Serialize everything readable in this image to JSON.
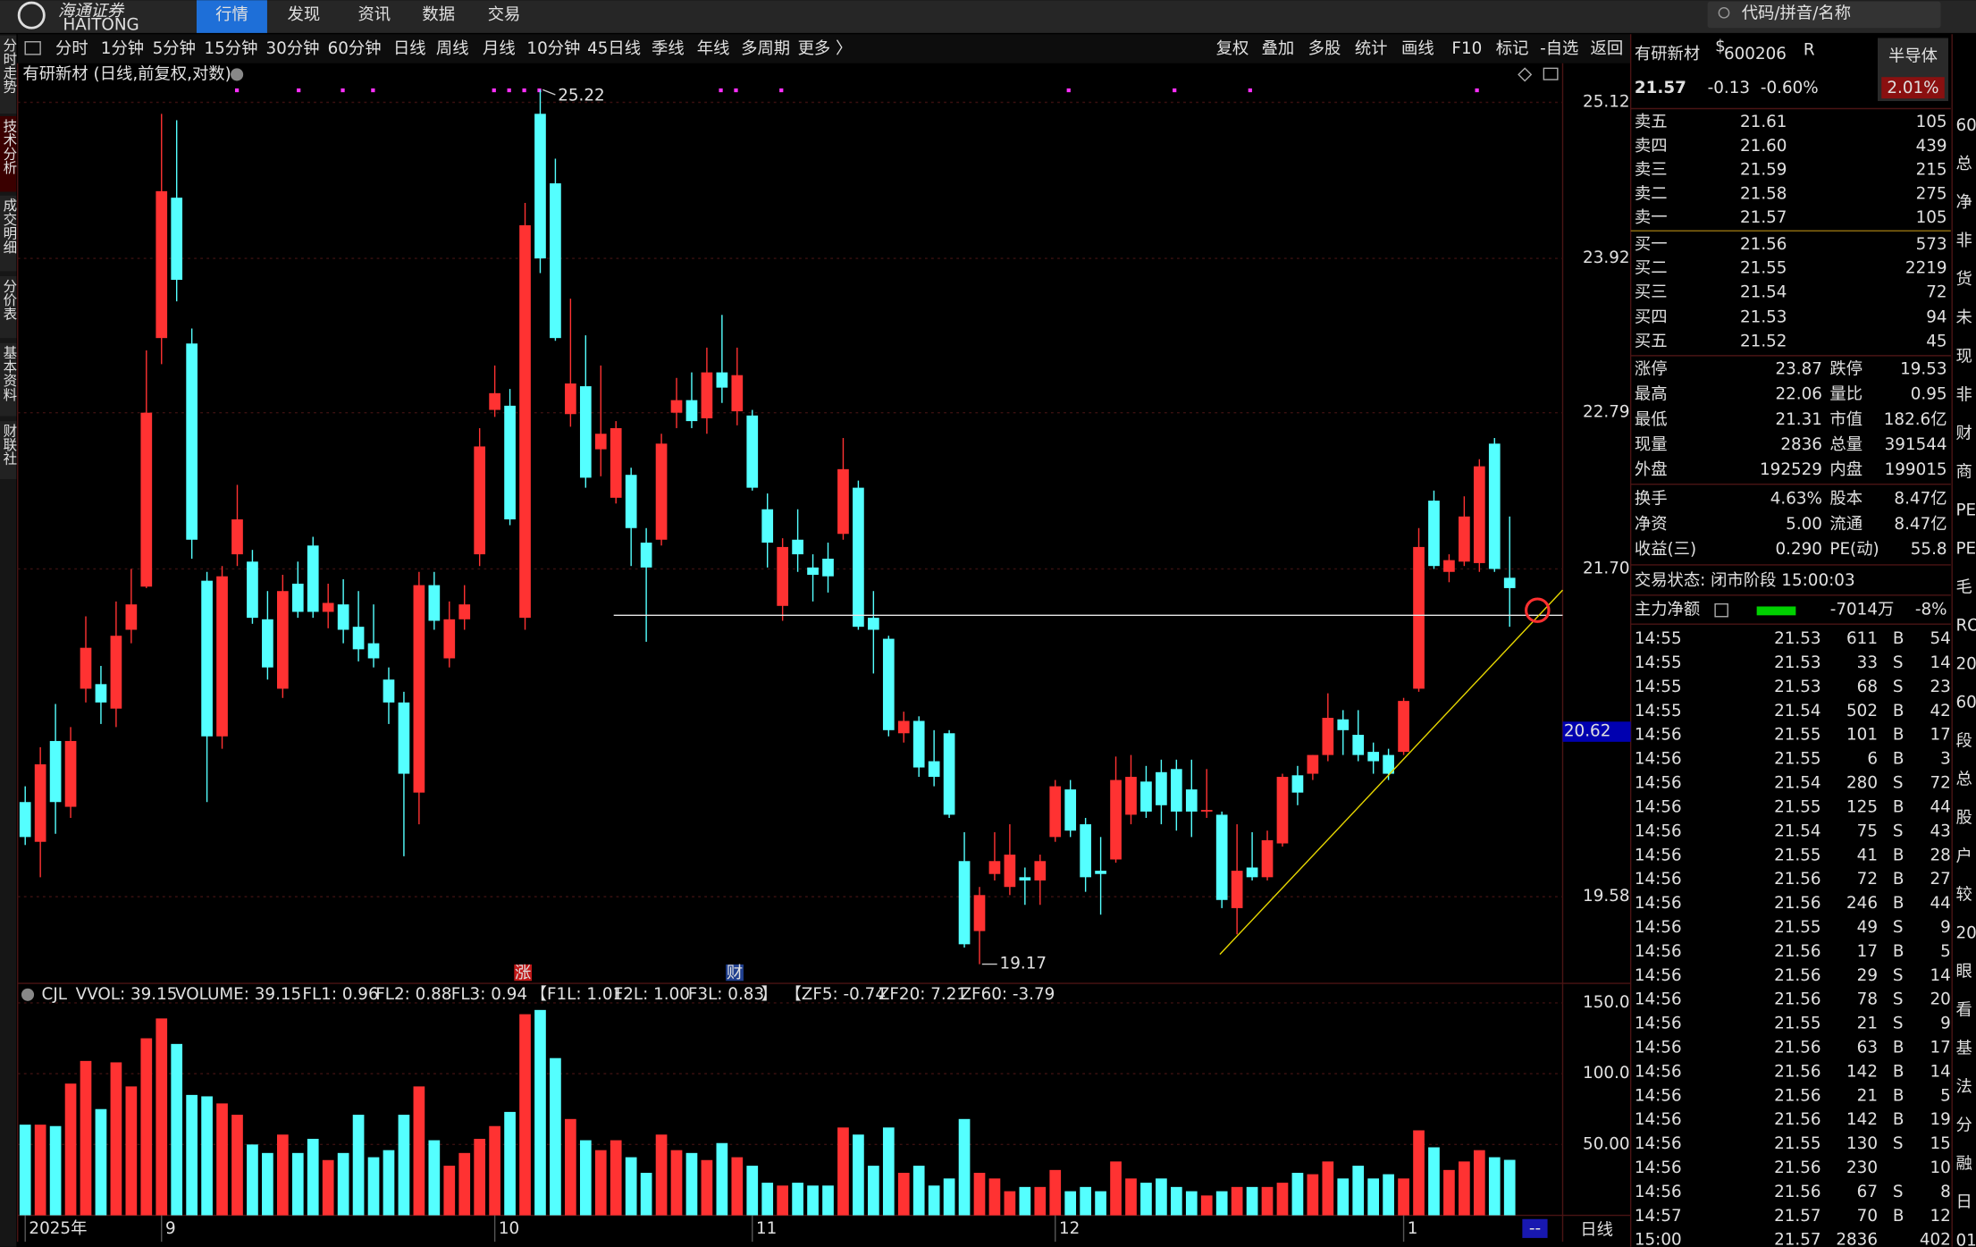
{
  "nav": {
    "logo": "海通证券",
    "logo_en": "HAITONG",
    "tabs": [
      "行情",
      "发现",
      "资讯",
      "数据",
      "交易"
    ],
    "selected_tab": 0,
    "search_placeholder": "代码/拼音/名称"
  },
  "side_tabs": {
    "items": [
      "分时走势",
      "技术分析",
      "成交明细",
      "分价表",
      "基本资料",
      "财联社"
    ],
    "selected": 1
  },
  "toolbar": {
    "periods": [
      "分时",
      "1分钟",
      "5分钟",
      "15分钟",
      "30分钟",
      "60分钟",
      "日线",
      "周线",
      "月线",
      "10分钟",
      "45日线",
      "季线",
      "年线",
      "多周期",
      "更多 〉"
    ],
    "selected_period": 6,
    "tools": [
      "复权",
      "叠加",
      "多股",
      "统计",
      "画线",
      "F10",
      "标记",
      "-自选",
      "返回"
    ]
  },
  "chart": {
    "type": "candlestick",
    "title": "有研新材 (日线,前复权,对数)",
    "log_scale": true,
    "up_color": "#ff3232",
    "down_color": "#54ffff",
    "ylim": [
      19.07,
      25.27
    ],
    "yticks": [
      25.12,
      23.92,
      22.79,
      {
        "value": 21.7,
        "label": "21.70"
      },
      19.58
    ],
    "cursor_price": 20.62,
    "high_label": 25.22,
    "low_label": 19.17,
    "event_markers": [
      "涨",
      "财"
    ],
    "categories": [
      "2025年",
      null,
      null,
      null,
      null,
      null,
      null,
      null,
      null,
      "9",
      null,
      null,
      null,
      null,
      null,
      null,
      null,
      null,
      null,
      null,
      null,
      null,
      null,
      null,
      null,
      null,
      null,
      null,
      null,
      null,
      null,
      "10",
      null,
      null,
      null,
      null,
      null,
      null,
      null,
      null,
      null,
      null,
      null,
      null,
      null,
      null,
      null,
      null,
      "11",
      null,
      null,
      null,
      null,
      null,
      null,
      null,
      null,
      null,
      null,
      null,
      null,
      null,
      null,
      null,
      null,
      null,
      null,
      null,
      "12",
      null,
      null,
      null,
      null,
      null,
      null,
      null,
      null,
      null,
      null,
      null,
      null,
      null,
      null,
      null,
      null,
      null,
      null,
      null,
      null,
      null,
      null,
      "1",
      null,
      null,
      null,
      null,
      null,
      null,
      null
    ],
    "open": [
      20.17,
      19.92,
      20.56,
      20.14,
      20.9,
      20.93,
      20.77,
      21.29,
      21.58,
      23.33,
      24.38,
      23.29,
      21.62,
      20.59,
      21.8,
      21.75,
      21.36,
      20.9,
      21.6,
      21.86,
      21.41,
      21.46,
      21.31,
      21.2,
      20.96,
      20.81,
      20.23,
      21.59,
      21.1,
      21.36,
      21.8,
      22.81,
      22.84,
      21.37,
      25.03,
      24.49,
      22.78,
      22.98,
      22.53,
      22.19,
      22.35,
      21.88,
      21.9,
      22.79,
      22.88,
      22.75,
      23.08,
      22.8,
      22.77,
      22.11,
      21.45,
      21.9,
      21.71,
      21.77,
      21.94,
      22.26,
      21.37,
      21.23,
      20.61,
      20.69,
      20.43,
      20.61,
      19.8,
      19.37,
      19.72,
      19.64,
      19.7,
      19.68,
      19.95,
      20.25,
      20.03,
      19.74,
      19.81,
      20.09,
      20.3,
      20.36,
      20.38,
      20.25,
      20.11,
      20.09,
      19.51,
      19.76,
      19.7,
      19.91,
      20.34,
      20.35,
      20.47,
      20.7,
      20.6,
      20.49,
      20.47,
      20.49,
      20.9,
      22.17,
      21.68,
      21.75,
      21.74,
      22.57,
      21.64
    ],
    "high": [
      20.27,
      20.52,
      20.8,
      20.65,
      21.38,
      21.05,
      21.48,
      21.7,
      23.24,
      25.03,
      24.98,
      23.4,
      21.68,
      21.72,
      22.28,
      21.83,
      21.55,
      21.66,
      21.75,
      21.92,
      21.6,
      21.63,
      21.55,
      21.46,
      21.04,
      20.88,
      21.68,
      21.68,
      21.48,
      21.59,
      22.68,
      23.13,
      22.96,
      24.34,
      25.22,
      24.68,
      23.62,
      23.35,
      23.13,
      22.73,
      22.4,
      21.98,
      22.64,
      23.04,
      23.08,
      23.26,
      23.5,
      23.26,
      22.81,
      22.22,
      21.91,
      22.11,
      21.8,
      21.88,
      22.61,
      22.31,
      21.55,
      21.25,
      20.75,
      20.72,
      20.63,
      20.63,
      19.98,
      19.64,
      19.98,
      20.03,
      19.76,
      19.84,
      20.31,
      20.31,
      20.07,
      19.95,
      20.46,
      20.47,
      20.4,
      20.44,
      20.44,
      20.44,
      20.38,
      20.11,
      20.03,
      19.98,
      19.99,
      20.35,
      20.4,
      20.47,
      20.87,
      20.76,
      20.76,
      20.55,
      20.51,
      20.84,
      21.98,
      22.24,
      21.8,
      22.2,
      22.46,
      22.61,
      22.06
    ],
    "low": [
      19.9,
      19.7,
      19.97,
      20.07,
      20.81,
      20.67,
      20.65,
      21.2,
      21.57,
      23.14,
      23.6,
      21.77,
      20.17,
      20.51,
      21.72,
      21.33,
      20.96,
      20.84,
      21.37,
      21.37,
      21.3,
      21.2,
      21.08,
      21.04,
      20.67,
      19.83,
      20.03,
      21.29,
      21.04,
      21.29,
      21.72,
      22.76,
      22.0,
      21.29,
      23.81,
      23.31,
      22.69,
      22.26,
      22.34,
      22.15,
      21.72,
      21.21,
      21.86,
      22.68,
      22.68,
      22.64,
      22.86,
      22.7,
      22.24,
      21.71,
      21.35,
      21.68,
      21.48,
      21.54,
      21.9,
      21.29,
      21.0,
      20.59,
      20.55,
      20.33,
      20.27,
      20.07,
      19.27,
      19.17,
      19.68,
      19.59,
      19.53,
      19.53,
      19.92,
      19.95,
      19.61,
      19.47,
      19.79,
      20.03,
      20.07,
      20.03,
      19.99,
      19.95,
      20.07,
      19.51,
      19.35,
      19.68,
      19.68,
      19.89,
      20.15,
      20.31,
      20.43,
      20.47,
      20.43,
      20.35,
      20.31,
      20.47,
      20.88,
      21.7,
      21.61,
      21.72,
      21.68,
      21.68,
      21.31
    ],
    "close": [
      19.95,
      20.41,
      20.17,
      20.56,
      21.17,
      20.81,
      21.25,
      21.46,
      22.79,
      24.43,
      23.76,
      21.9,
      20.59,
      21.65,
      22.04,
      21.37,
      21.04,
      21.55,
      21.41,
      21.41,
      21.47,
      21.29,
      21.16,
      21.1,
      20.81,
      20.35,
      21.59,
      21.35,
      21.36,
      21.46,
      22.55,
      22.93,
      22.04,
      24.17,
      23.92,
      23.33,
      23.0,
      22.33,
      22.64,
      22.68,
      21.98,
      21.71,
      22.57,
      22.88,
      22.73,
      23.08,
      22.97,
      23.06,
      22.26,
      21.88,
      21.85,
      21.8,
      21.66,
      21.65,
      22.39,
      21.31,
      21.29,
      20.63,
      20.69,
      20.39,
      20.33,
      20.09,
      19.29,
      19.59,
      19.8,
      19.84,
      19.68,
      19.8,
      20.27,
      19.99,
      19.7,
      19.72,
      20.31,
      20.33,
      20.11,
      20.15,
      20.11,
      20.11,
      20.12,
      19.56,
      19.74,
      19.7,
      19.93,
      20.33,
      20.23,
      20.47,
      20.71,
      20.63,
      20.47,
      20.43,
      20.35,
      20.82,
      21.85,
      21.72,
      21.76,
      22.06,
      22.41,
      21.7,
      21.57
    ],
    "volume": [
      64,
      64,
      63,
      93,
      109,
      75,
      108,
      91,
      125,
      139,
      121,
      85,
      84,
      79,
      71,
      50,
      44,
      57,
      44,
      54,
      39,
      44,
      71,
      41,
      46,
      71,
      91,
      53,
      35,
      44,
      54,
      63,
      73,
      142,
      145,
      111,
      68,
      53,
      46,
      53,
      41,
      30,
      57,
      46,
      44,
      39,
      51,
      41,
      35,
      23,
      21,
      23,
      21,
      21,
      62,
      57,
      35,
      62,
      30,
      35,
      21,
      26,
      68,
      30,
      26,
      17,
      20,
      20,
      32,
      17,
      20,
      17,
      38,
      26,
      23,
      26,
      20,
      17,
      14,
      17,
      20,
      20,
      20,
      23,
      30,
      29,
      38,
      26,
      35,
      26,
      29,
      26,
      60,
      48,
      32,
      38,
      46,
      41,
      39.15
    ],
    "vol_ylim": [
      0,
      162
    ],
    "vol_yticks": [
      {
        "value": 50,
        "label": "50.00"
      },
      {
        "value": 100,
        "label": "100.0"
      },
      {
        "value": 150,
        "label": "150.0"
      }
    ],
    "indicators": [
      {
        "text": "CJL",
        "color": "#bbbbbb"
      },
      {
        "text": "VVOL: 39.15",
        "color": "#ffffff"
      },
      {
        "text": "VOLUME: 39.15",
        "color": "#f0e040"
      },
      {
        "text": "FL1: 0.96",
        "color": "#ffffff"
      },
      {
        "text": "FL2: 0.88",
        "color": "#ffffff"
      },
      {
        "text": "FL3: 0.94",
        "color": "#ff3232"
      },
      {
        "text": "【F1L: 1.01",
        "color": "#ffffff"
      },
      {
        "text": "F2L: 1.00",
        "color": "#ffffff"
      },
      {
        "text": "F3L: 0.83",
        "color": "#ff3232"
      },
      {
        "text": "】",
        "color": "#f0e040"
      },
      {
        "text": "【ZF5: -0.74",
        "color": "#ffffff"
      },
      {
        "text": "ZF20: 7.21",
        "color": "#ff40ff"
      },
      {
        "text": "ZF60: -3.79",
        "color": "#00e000"
      }
    ],
    "period_label": "日线",
    "scroll_marker": "--"
  },
  "quote": {
    "name": "有研新材",
    "name_mark": "$",
    "code": "600206",
    "code_mark": "R",
    "sector": "半导体",
    "sector_change": "2.01%",
    "price": "21.57",
    "change": "-0.13",
    "change_pct": "-0.60%",
    "book": [
      [
        "卖五",
        "21.61",
        "105"
      ],
      [
        "卖四",
        "21.60",
        "439"
      ],
      [
        "卖三",
        "21.59",
        "215"
      ],
      [
        "卖二",
        "21.58",
        "275"
      ],
      [
        "卖一",
        "21.57",
        "105"
      ],
      [
        "买一",
        "21.56",
        "573"
      ],
      [
        "买二",
        "21.55",
        "2219"
      ],
      [
        "买三",
        "21.54",
        "72"
      ],
      [
        "买四",
        "21.53",
        "94"
      ],
      [
        "买五",
        "21.52",
        "45"
      ]
    ],
    "stats": [
      {
        "l1": "涨停",
        "v1": "23.87",
        "c1": "#ff3232",
        "l2": "跌停",
        "v2": "19.53",
        "c2": "#00e000"
      },
      {
        "l1": "最高",
        "v1": "22.06",
        "c1": "#ff3232",
        "l2": "量比",
        "v2": "0.95",
        "c2": "#00e000"
      },
      {
        "l1": "最低",
        "v1": "21.31",
        "c1": "#00e000",
        "l2": "市值",
        "v2": "182.6亿",
        "c2": "#ffffff"
      },
      {
        "l1": "现量",
        "v1": "2836",
        "c1": "#ff40ff",
        "l2": "总量",
        "v2": "391544",
        "c2": "#ffffff"
      },
      {
        "l1": "外盘",
        "v1": "192529",
        "c1": "#ff3232",
        "l2": "内盘",
        "v2": "199015",
        "c2": "#00e000"
      },
      {
        "l1": "换手",
        "v1": "4.63%",
        "c1": "#ffffff",
        "l2": "股本",
        "v2": "8.47亿",
        "c2": "#ffffff"
      },
      {
        "l1": "净资",
        "v1": "5.00",
        "c1": "#ffffff",
        "l2": "流通",
        "v2": "8.47亿",
        "c2": "#ffffff"
      },
      {
        "l1": "收益(三)",
        "v1": "0.290",
        "c1": "#ffffff",
        "l2": "PE(动)",
        "v2": "55.8",
        "c2": "#ffffff"
      }
    ],
    "status": "交易状态: 闭市阶段 15:00:03",
    "flow": {
      "label": "主力净额",
      "value": "-7014万",
      "pct": "-8%"
    },
    "ticks": [
      [
        "14:55",
        "21.53",
        "611",
        "B",
        "54"
      ],
      [
        "14:55",
        "21.53",
        "33",
        "S",
        "14"
      ],
      [
        "14:55",
        "21.53",
        "68",
        "S",
        "23"
      ],
      [
        "14:55",
        "21.54",
        "502",
        "B",
        "42"
      ],
      [
        "14:56",
        "21.55",
        "101",
        "B",
        "17"
      ],
      [
        "14:56",
        "21.55",
        "6",
        "B",
        "3"
      ],
      [
        "14:56",
        "21.54",
        "280",
        "S",
        "72"
      ],
      [
        "14:56",
        "21.55",
        "125",
        "B",
        "44"
      ],
      [
        "14:56",
        "21.54",
        "75",
        "S",
        "43"
      ],
      [
        "14:56",
        "21.55",
        "41",
        "B",
        "28"
      ],
      [
        "14:56",
        "21.56",
        "72",
        "B",
        "27"
      ],
      [
        "14:56",
        "21.56",
        "246",
        "B",
        "44"
      ],
      [
        "14:56",
        "21.55",
        "49",
        "S",
        "9"
      ],
      [
        "14:56",
        "21.56",
        "17",
        "B",
        "5"
      ],
      [
        "14:56",
        "21.56",
        "29",
        "S",
        "14"
      ],
      [
        "14:56",
        "21.56",
        "78",
        "S",
        "20"
      ],
      [
        "14:56",
        "21.55",
        "21",
        "S",
        "9"
      ],
      [
        "14:56",
        "21.56",
        "63",
        "B",
        "17"
      ],
      [
        "14:56",
        "21.56",
        "142",
        "B",
        "14"
      ],
      [
        "14:56",
        "21.56",
        "21",
        "B",
        "5"
      ],
      [
        "14:56",
        "21.56",
        "142",
        "B",
        "19"
      ],
      [
        "14:56",
        "21.55",
        "130",
        "S",
        "15"
      ],
      [
        "14:56",
        "21.56",
        "230",
        null,
        "10"
      ],
      [
        "14:56",
        "21.56",
        "67",
        "S",
        "8"
      ],
      [
        "14:57",
        "21.57",
        "70",
        "B",
        "12"
      ],
      [
        "15:00",
        "21.57",
        "2836",
        null,
        "402"
      ]
    ],
    "edge_column": [
      "60",
      "总",
      "净",
      "非",
      "货",
      "未",
      "现",
      "非",
      "财",
      "商",
      "PE",
      "PE",
      "毛",
      "RO",
      "20",
      "60",
      "段",
      "总",
      "股",
      "户",
      "较",
      "20",
      "眼",
      "看",
      "基",
      "法",
      "分",
      "融",
      "日",
      "01"
    ]
  }
}
